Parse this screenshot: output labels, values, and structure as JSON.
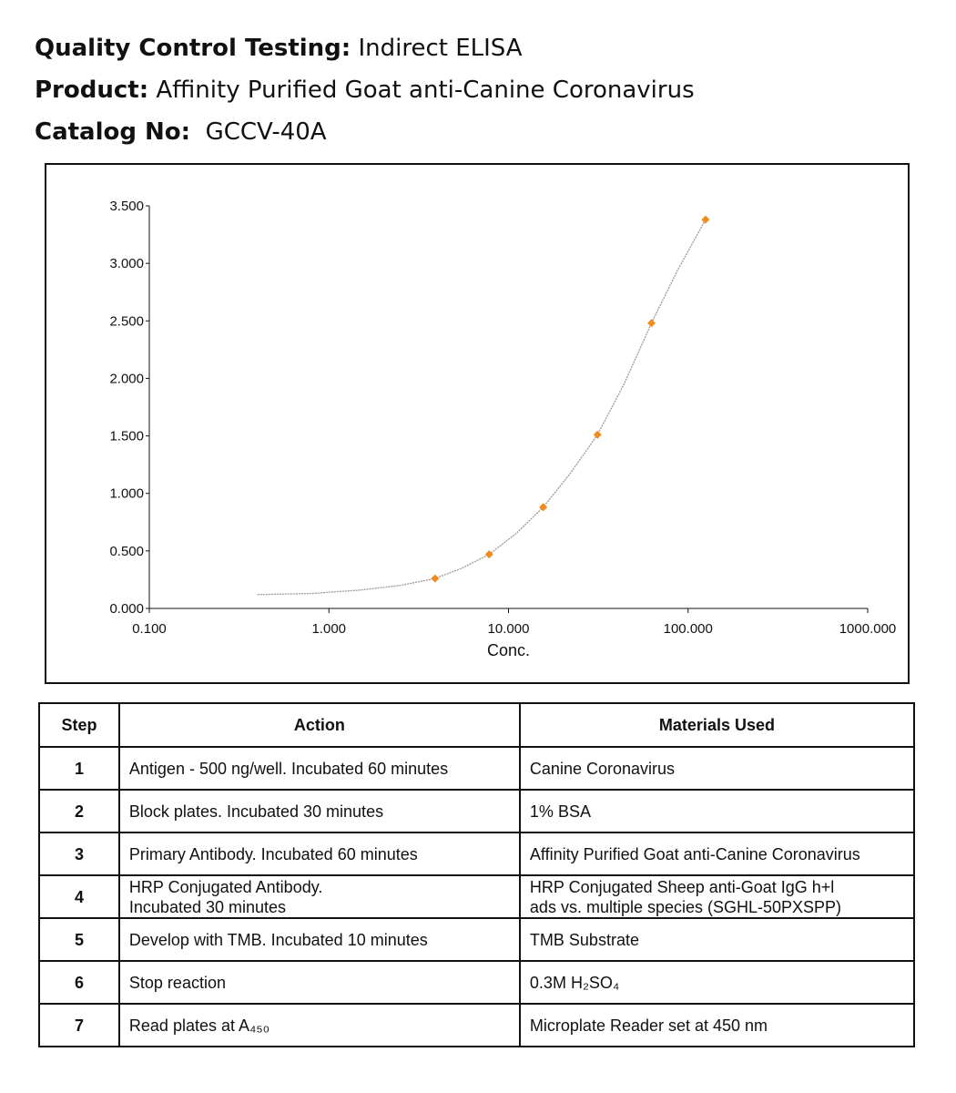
{
  "header": {
    "qc_label": "Quality Control Testing:",
    "qc_value": "Indirect ELISA",
    "product_label": "Product:",
    "product_value": "Affinity Purified Goat anti-Canine Coronavirus",
    "catalog_label": "Catalog No:",
    "catalog_value": "GCCV-40A"
  },
  "colors": {
    "marker": "#f08c1e",
    "curve": "#9a9a9a",
    "border": "#111111"
  },
  "chart_data": {
    "type": "scatter",
    "xlabel": "Conc.",
    "ylabel": "",
    "x_scale": "log",
    "xlim": [
      0.1,
      1000
    ],
    "ylim": [
      0,
      3.5
    ],
    "x_ticks": [
      "0.100",
      "1.000",
      "10.000",
      "100.000",
      "1000.000"
    ],
    "y_ticks": [
      "0.000",
      "0.500",
      "1.000",
      "1.500",
      "2.000",
      "2.500",
      "3.000",
      "3.500"
    ],
    "grid": false,
    "points": {
      "x": [
        3.9,
        7.8,
        15.6,
        31.3,
        62.5,
        125
      ],
      "y": [
        0.26,
        0.47,
        0.88,
        1.51,
        2.48,
        3.38
      ]
    },
    "fit_curve": {
      "x": [
        0.4,
        0.8,
        1.5,
        2.5,
        3.9,
        5.5,
        7.8,
        11,
        15.6,
        22,
        31.3,
        44,
        62.5,
        88,
        125
      ],
      "y": [
        0.12,
        0.13,
        0.16,
        0.2,
        0.26,
        0.35,
        0.47,
        0.65,
        0.88,
        1.17,
        1.51,
        1.95,
        2.48,
        2.95,
        3.38
      ]
    }
  },
  "table": {
    "headers": [
      "Step",
      "Action",
      "Materials Used"
    ],
    "rows": [
      {
        "step": "1",
        "action": "Antigen - 500 ng/well. Incubated 60 minutes",
        "material": "Canine Coronavirus"
      },
      {
        "step": "2",
        "action": "Block plates. Incubated 30 minutes",
        "material": "1% BSA"
      },
      {
        "step": "3",
        "action": "Primary Antibody.  Incubated 60 minutes",
        "material": "Affinity Purified Goat anti-Canine Coronavirus"
      },
      {
        "step": "4",
        "action": "HRP Conjugated Antibody.\nIncubated 30 minutes",
        "material": "HRP Conjugated Sheep anti-Goat IgG h+l\nads vs. multiple species (SGHL-50PXSPP)"
      },
      {
        "step": "5",
        "action": "Develop with TMB.  Incubated 10 minutes",
        "material": "TMB Substrate"
      },
      {
        "step": "6",
        "action": "Stop reaction",
        "material": "0.3M H₂SO₄"
      },
      {
        "step": "7",
        "action": "Read plates at A₄₅₀",
        "material": "Microplate Reader set at 450 nm"
      }
    ]
  }
}
